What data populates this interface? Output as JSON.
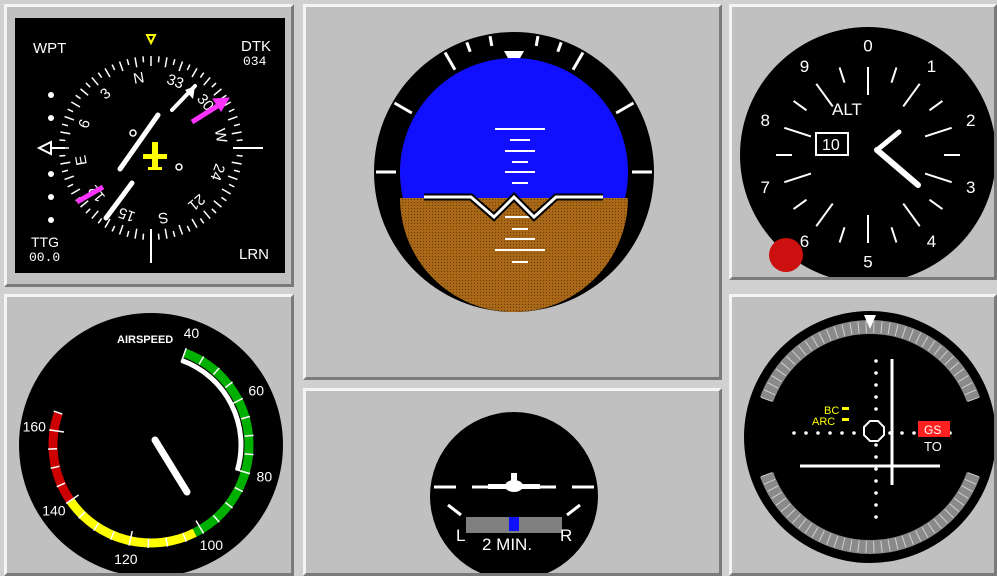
{
  "hsi": {
    "wpt_label": "WPT",
    "dtk_label": "DTK",
    "dtk_value": "034",
    "ttg_label": "TTG",
    "ttg_value": "00.0",
    "mode_label": "LRN",
    "card_labels": [
      "N",
      "33",
      "30",
      "W",
      "24",
      "21",
      "S",
      "15",
      "12",
      "E",
      "6",
      "3"
    ]
  },
  "attitude": {},
  "altimeter": {
    "label": "ALT",
    "kollsman_value": "10",
    "dial_numbers": [
      "0",
      "1",
      "2",
      "3",
      "4",
      "5",
      "6",
      "7",
      "8",
      "9"
    ]
  },
  "airspeed": {
    "title": "AIRSPEED",
    "scale_labels": [
      "40",
      "60",
      "80",
      "100",
      "120",
      "140",
      "160"
    ]
  },
  "turn_coordinator": {
    "left_label": "L",
    "right_label": "R",
    "time_label": "2 MIN."
  },
  "nav": {
    "bc_label": "BC",
    "arc_label": "ARC",
    "gs_flag": "GS",
    "to_from": "TO",
    "colors": {
      "flag": "#ff2020",
      "annunciator": "#ffff00"
    }
  },
  "colors": {
    "sky": "#1010ff",
    "ground": "#a86818",
    "magenta": "#ff33ff",
    "yellow": "#ffff00"
  }
}
